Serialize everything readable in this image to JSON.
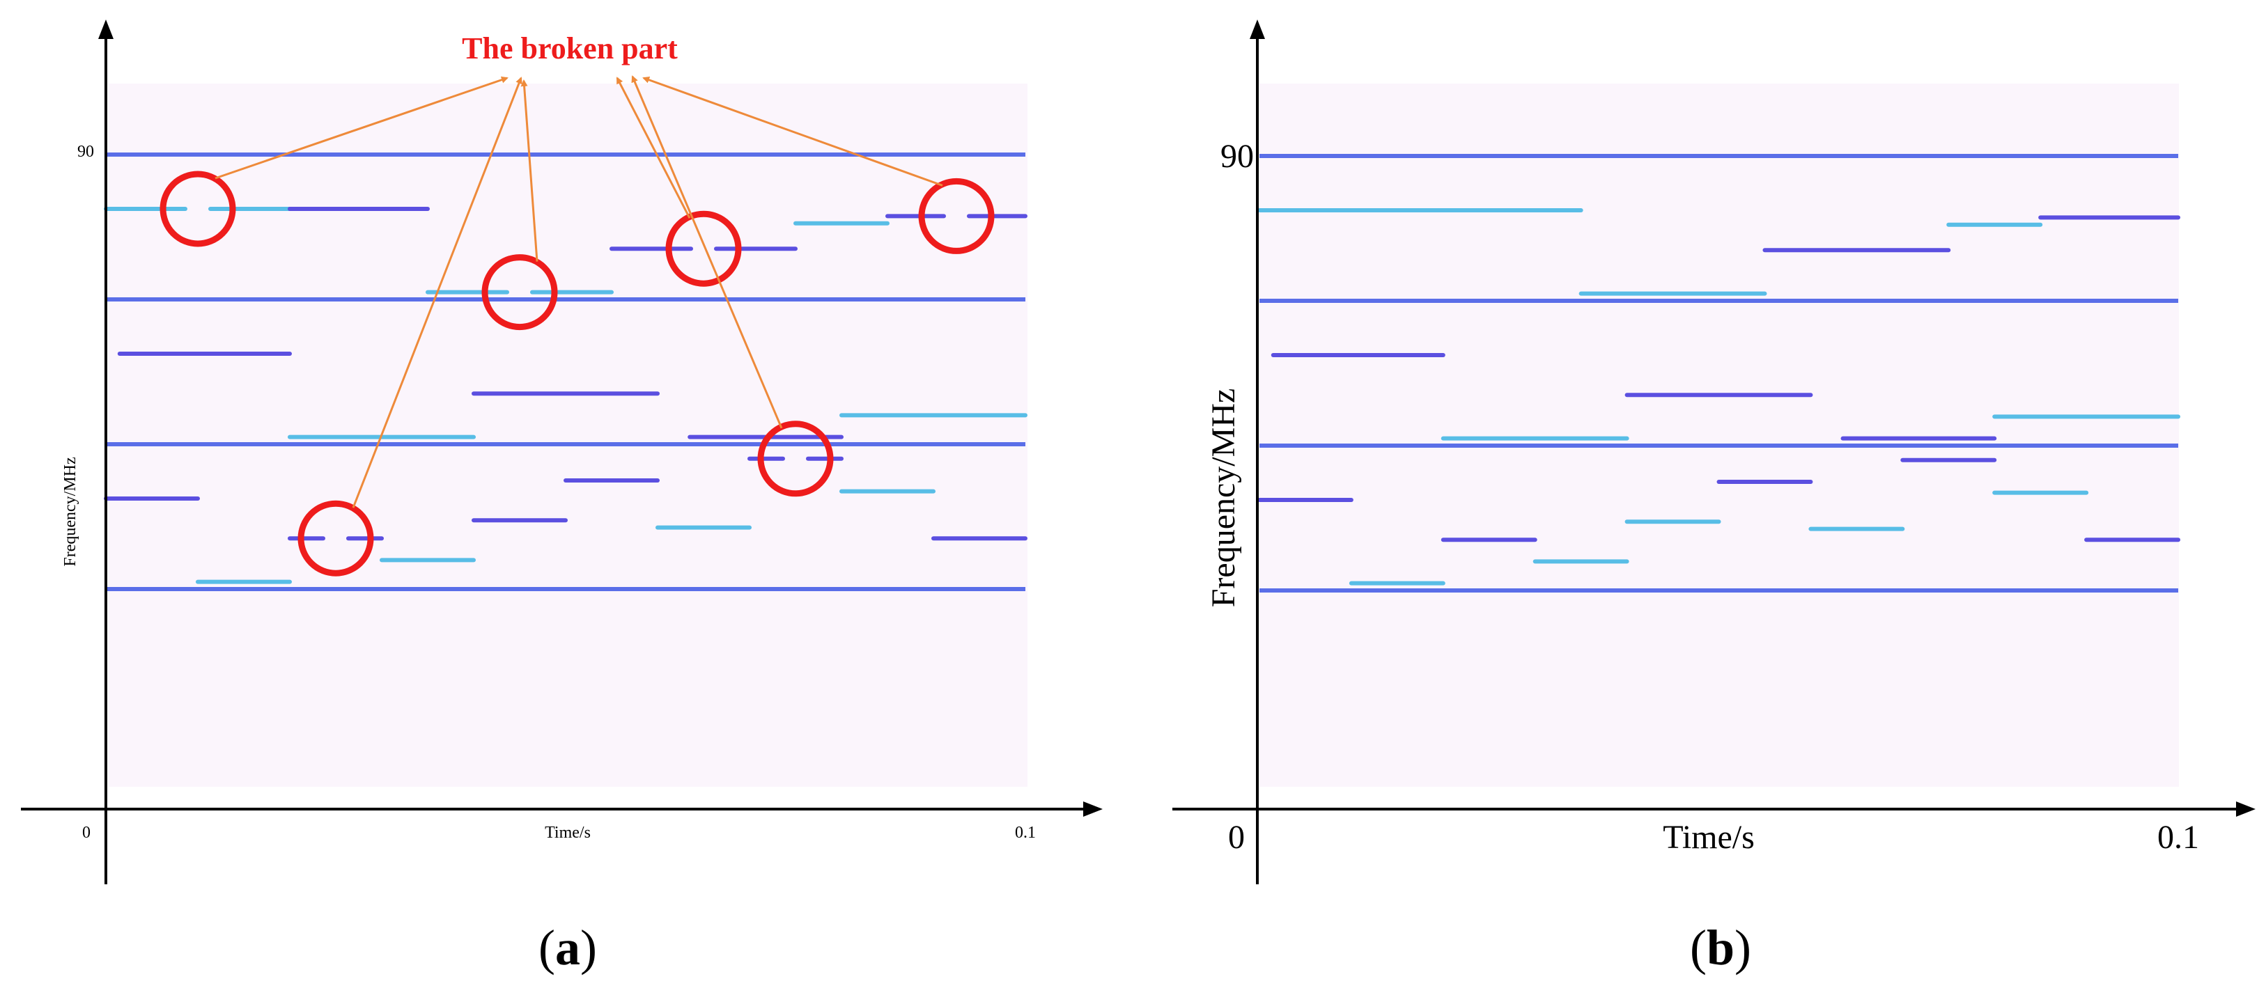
{
  "colors": {
    "background_tint": "#f8f0fb",
    "blue_line": "#5a6ee8",
    "cyan_segment": "#58bde6",
    "violet_segment": "#5b4fe0",
    "annotation_red": "#ee1c1c",
    "arrow_orange": "#ee8a3a",
    "axis": "#000000"
  },
  "annotation": {
    "label": "The broken part"
  },
  "chart_data": [
    {
      "type": "spectrogram",
      "panel_label": "a",
      "xlabel": "Time/s",
      "ylabel": "Frequency/MHz",
      "xtick_labels": [
        "0",
        "0.1"
      ],
      "ytick_labels": [
        "90"
      ],
      "xlim": [
        0,
        0.1
      ],
      "ylim": [
        0,
        100
      ],
      "grid": false,
      "fixed_tones_mhz": [
        90,
        70,
        50,
        30
      ],
      "hopping_segments": [
        {
          "t0": 0.0,
          "t1": 0.02,
          "f": 82.5,
          "color": "cyan",
          "broken": true
        },
        {
          "t0": 0.0,
          "t1": 0.01,
          "f": 42.5,
          "color": "violet",
          "broken": false
        },
        {
          "t0": 0.0015,
          "t1": 0.02,
          "f": 62.5,
          "color": "violet",
          "broken": false
        },
        {
          "t0": 0.01,
          "t1": 0.02,
          "f": 31.0,
          "color": "cyan",
          "broken": false
        },
        {
          "t0": 0.02,
          "t1": 0.03,
          "f": 37.0,
          "color": "violet",
          "broken": true
        },
        {
          "t0": 0.02,
          "t1": 0.04,
          "f": 51.0,
          "color": "cyan",
          "broken": false
        },
        {
          "t0": 0.02,
          "t1": 0.035,
          "f": 82.5,
          "color": "violet",
          "broken": false
        },
        {
          "t0": 0.03,
          "t1": 0.04,
          "f": 34.0,
          "color": "cyan",
          "broken": false
        },
        {
          "t0": 0.035,
          "t1": 0.055,
          "f": 71.0,
          "color": "cyan",
          "broken": true
        },
        {
          "t0": 0.04,
          "t1": 0.05,
          "f": 39.5,
          "color": "violet",
          "broken": false
        },
        {
          "t0": 0.04,
          "t1": 0.06,
          "f": 57.0,
          "color": "violet",
          "broken": false
        },
        {
          "t0": 0.05,
          "t1": 0.06,
          "f": 45.0,
          "color": "violet",
          "broken": false
        },
        {
          "t0": 0.06,
          "t1": 0.07,
          "f": 38.5,
          "color": "cyan",
          "broken": false
        },
        {
          "t0": 0.055,
          "t1": 0.075,
          "f": 77.0,
          "color": "violet",
          "broken": true
        },
        {
          "t0": 0.0635,
          "t1": 0.08,
          "f": 51.0,
          "color": "violet",
          "broken": false
        },
        {
          "t0": 0.07,
          "t1": 0.08,
          "f": 48.0,
          "color": "violet",
          "broken": true
        },
        {
          "t0": 0.075,
          "t1": 0.085,
          "f": 80.5,
          "color": "cyan",
          "broken": false
        },
        {
          "t0": 0.08,
          "t1": 0.1,
          "f": 54.0,
          "color": "cyan",
          "broken": false
        },
        {
          "t0": 0.08,
          "t1": 0.09,
          "f": 43.5,
          "color": "cyan",
          "broken": false
        },
        {
          "t0": 0.085,
          "t1": 0.1,
          "f": 81.5,
          "color": "violet",
          "broken": true
        },
        {
          "t0": 0.09,
          "t1": 0.1,
          "f": 37.0,
          "color": "violet",
          "broken": false
        }
      ]
    },
    {
      "type": "spectrogram",
      "panel_label": "b",
      "xlabel": "Time/s",
      "ylabel": "Frequency/MHz",
      "xtick_labels": [
        "0",
        "0.1"
      ],
      "ytick_labels": [
        "90"
      ],
      "xlim": [
        0,
        0.1
      ],
      "ylim": [
        0,
        100
      ],
      "grid": false,
      "fixed_tones_mhz": [
        90,
        70,
        50,
        30
      ],
      "hopping_segments": [
        {
          "t0": 0.0,
          "t1": 0.035,
          "f": 82.5,
          "color": "cyan",
          "broken": false
        },
        {
          "t0": 0.0,
          "t1": 0.01,
          "f": 42.5,
          "color": "violet",
          "broken": false
        },
        {
          "t0": 0.0015,
          "t1": 0.02,
          "f": 62.5,
          "color": "violet",
          "broken": false
        },
        {
          "t0": 0.01,
          "t1": 0.02,
          "f": 31.0,
          "color": "cyan",
          "broken": false
        },
        {
          "t0": 0.02,
          "t1": 0.03,
          "f": 37.0,
          "color": "violet",
          "broken": false
        },
        {
          "t0": 0.02,
          "t1": 0.04,
          "f": 51.0,
          "color": "cyan",
          "broken": false
        },
        {
          "t0": 0.03,
          "t1": 0.04,
          "f": 34.0,
          "color": "cyan",
          "broken": false
        },
        {
          "t0": 0.035,
          "t1": 0.055,
          "f": 71.0,
          "color": "cyan",
          "broken": false
        },
        {
          "t0": 0.04,
          "t1": 0.05,
          "f": 39.5,
          "color": "cyan",
          "broken": false
        },
        {
          "t0": 0.04,
          "t1": 0.06,
          "f": 57.0,
          "color": "violet",
          "broken": false
        },
        {
          "t0": 0.05,
          "t1": 0.06,
          "f": 45.0,
          "color": "violet",
          "broken": false
        },
        {
          "t0": 0.06,
          "t1": 0.07,
          "f": 38.5,
          "color": "cyan",
          "broken": false
        },
        {
          "t0": 0.055,
          "t1": 0.075,
          "f": 77.0,
          "color": "violet",
          "broken": false
        },
        {
          "t0": 0.0635,
          "t1": 0.08,
          "f": 51.0,
          "color": "violet",
          "broken": false
        },
        {
          "t0": 0.07,
          "t1": 0.08,
          "f": 48.0,
          "color": "violet",
          "broken": false
        },
        {
          "t0": 0.075,
          "t1": 0.085,
          "f": 80.5,
          "color": "cyan",
          "broken": false
        },
        {
          "t0": 0.08,
          "t1": 0.1,
          "f": 54.0,
          "color": "cyan",
          "broken": false
        },
        {
          "t0": 0.08,
          "t1": 0.09,
          "f": 43.5,
          "color": "cyan",
          "broken": false
        },
        {
          "t0": 0.085,
          "t1": 0.1,
          "f": 81.5,
          "color": "violet",
          "broken": false
        },
        {
          "t0": 0.09,
          "t1": 0.1,
          "f": 37.0,
          "color": "violet",
          "broken": false
        }
      ]
    }
  ]
}
